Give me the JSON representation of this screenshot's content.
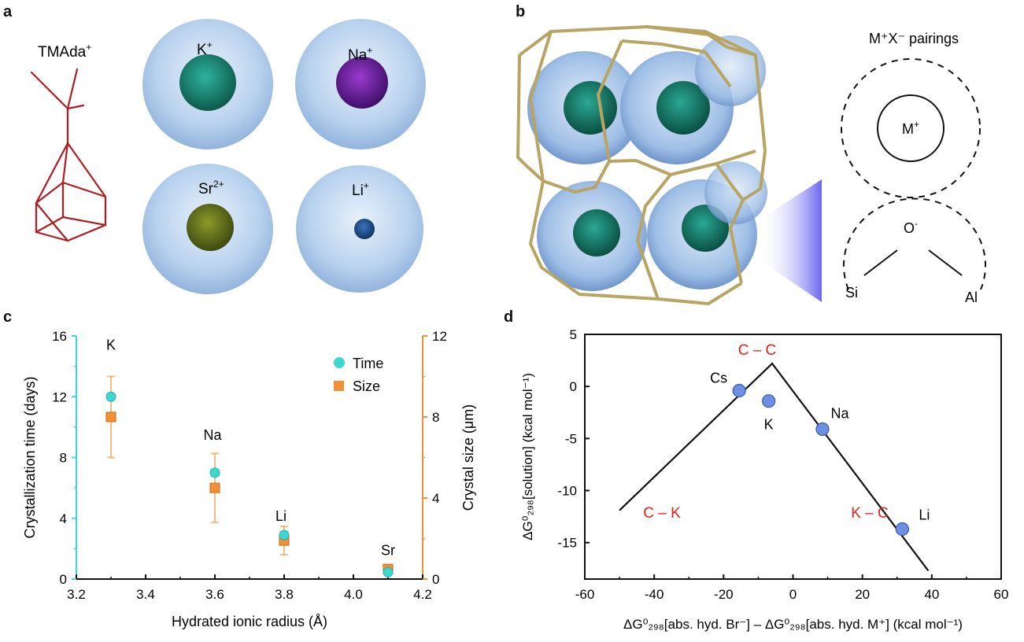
{
  "panels": {
    "a": {
      "letter": "a",
      "molecule_label": "TMAda",
      "molecule_charge": "+",
      "ions": [
        {
          "symbol": "K",
          "charge": "+",
          "color": "#1b8a78"
        },
        {
          "symbol": "Na",
          "charge": "+",
          "color": "#6a1fa0"
        },
        {
          "symbol": "Sr",
          "charge": "2+",
          "color": "#6b7a1e"
        },
        {
          "symbol": "Li",
          "charge": "+",
          "color": "#1e4f8c"
        }
      ]
    },
    "b": {
      "letter": "b",
      "pairings_title": "M⁺X⁻ pairings",
      "cation_label": "M",
      "cation_charge": "+",
      "oxygen_label": "O",
      "oxygen_charge": "-",
      "si_label": "Si",
      "al_label": "Al"
    },
    "c": {
      "letter": "c"
    },
    "d": {
      "letter": "d"
    }
  },
  "chart_data": [
    {
      "type": "scatter",
      "panel": "c",
      "xlabel": "Hydrated ionic radius (Å)",
      "ylabel": "Crystallization time (days)",
      "y2label": "Crystal size (μm)",
      "xlim": [
        3.2,
        4.2
      ],
      "ylim": [
        0,
        16
      ],
      "y2lim": [
        0,
        12
      ],
      "xticks": [
        "3.2",
        "3.4",
        "3.6",
        "3.8",
        "4.0",
        "4.2"
      ],
      "yticks": [
        "0",
        "4",
        "8",
        "12",
        "16"
      ],
      "y2ticks": [
        "0",
        "4",
        "8",
        "12"
      ],
      "legend_position": "top-right",
      "series": [
        {
          "name": "Time",
          "axis": "left",
          "color": "#3fd8d0",
          "points": [
            {
              "label": "K",
              "x": 3.3,
              "y": 12
            },
            {
              "label": "Na",
              "x": 3.6,
              "y": 7
            },
            {
              "label": "Li",
              "x": 3.8,
              "y": 2.9
            },
            {
              "label": "Sr",
              "x": 4.1,
              "y": 0.45
            }
          ]
        },
        {
          "name": "Size",
          "axis": "right",
          "color": "#f0913a",
          "points": [
            {
              "x": 3.3,
              "y": 8.0,
              "err": 2.0
            },
            {
              "x": 3.6,
              "y": 4.5,
              "err": 1.7
            },
            {
              "x": 3.8,
              "y": 1.9,
              "err": 0.7
            },
            {
              "x": 4.1,
              "y": 0.5,
              "err": 0.1
            }
          ]
        }
      ],
      "point_labels": [
        "K",
        "Na",
        "Li",
        "Sr"
      ]
    },
    {
      "type": "scatter",
      "panel": "d",
      "xlabel": "ΔG⁰₂₉₈[abs. hyd. Br⁻] – ΔG⁰₂₉₈[abs. hyd. M⁺] (kcal mol⁻¹)",
      "ylabel": "ΔG⁰₂₉₈[solution] (kcal mol⁻¹)",
      "xlim": [
        -60,
        60
      ],
      "ylim": [
        -18.5,
        5
      ],
      "xticks": [
        "-60",
        "-40",
        "-20",
        "0",
        "20",
        "40",
        "60"
      ],
      "yticks": [
        "5",
        "0",
        "-5",
        "-10",
        "-15"
      ],
      "points": [
        {
          "label": "Cs",
          "x": -15.5,
          "y": -0.4
        },
        {
          "label": "K",
          "x": -7,
          "y": -1.4
        },
        {
          "label": "Na",
          "x": 8.5,
          "y": -4.1
        },
        {
          "label": "Li",
          "x": 31.5,
          "y": -13.7
        }
      ],
      "trend_line": [
        [
          -50,
          -11.9
        ],
        [
          -6,
          2.2
        ],
        [
          39,
          -17.7
        ]
      ],
      "annotations": [
        {
          "text": "C – C",
          "color": "#e0201a"
        },
        {
          "text": "C – K",
          "color": "#e0201a"
        },
        {
          "text": "K – C",
          "color": "#e0201a"
        }
      ]
    }
  ]
}
